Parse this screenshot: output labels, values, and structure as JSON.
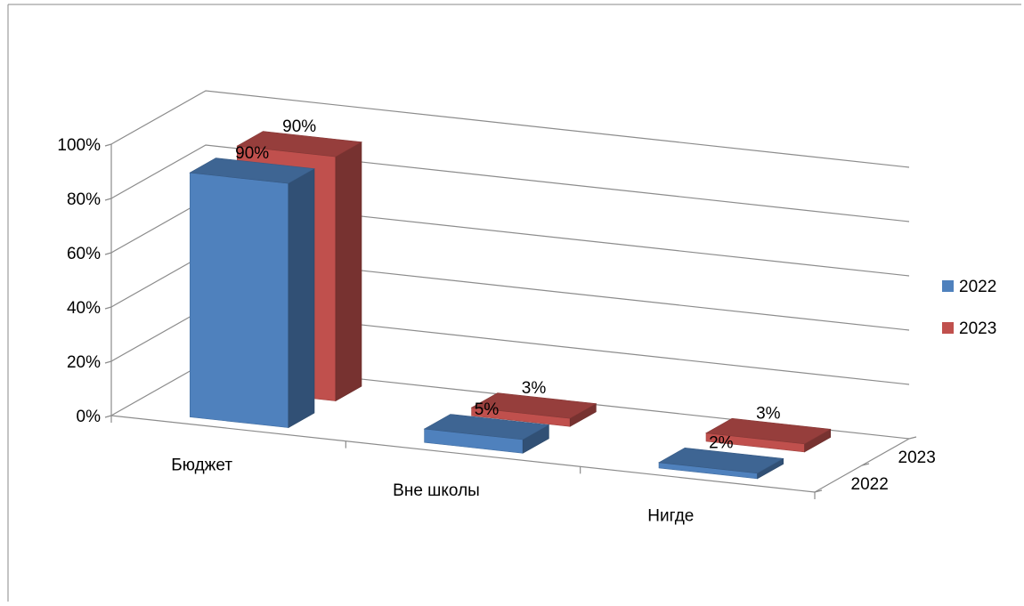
{
  "chart_data": {
    "type": "bar",
    "subtype": "3d-clustered-depth",
    "categories": [
      "Бюджет",
      "Вне школы",
      "Нигде"
    ],
    "series": [
      {
        "name": "2022",
        "values": [
          90,
          5,
          2
        ],
        "labels": [
          "90%",
          "5%",
          "2%"
        ],
        "color": "#4F81BD"
      },
      {
        "name": "2023",
        "values": [
          90,
          3,
          3
        ],
        "labels": [
          "90%",
          "3%",
          "3%"
        ],
        "color": "#C0504D"
      }
    ],
    "ylim": [
      0,
      100
    ],
    "y_ticks": [
      0,
      20,
      40,
      60,
      80,
      100
    ],
    "y_tick_labels": [
      "0%",
      "20%",
      "40%",
      "60%",
      "80%",
      "100%"
    ],
    "depth_axis_labels": [
      "2022",
      "2023"
    ],
    "grid": true,
    "legend_position": "right"
  }
}
